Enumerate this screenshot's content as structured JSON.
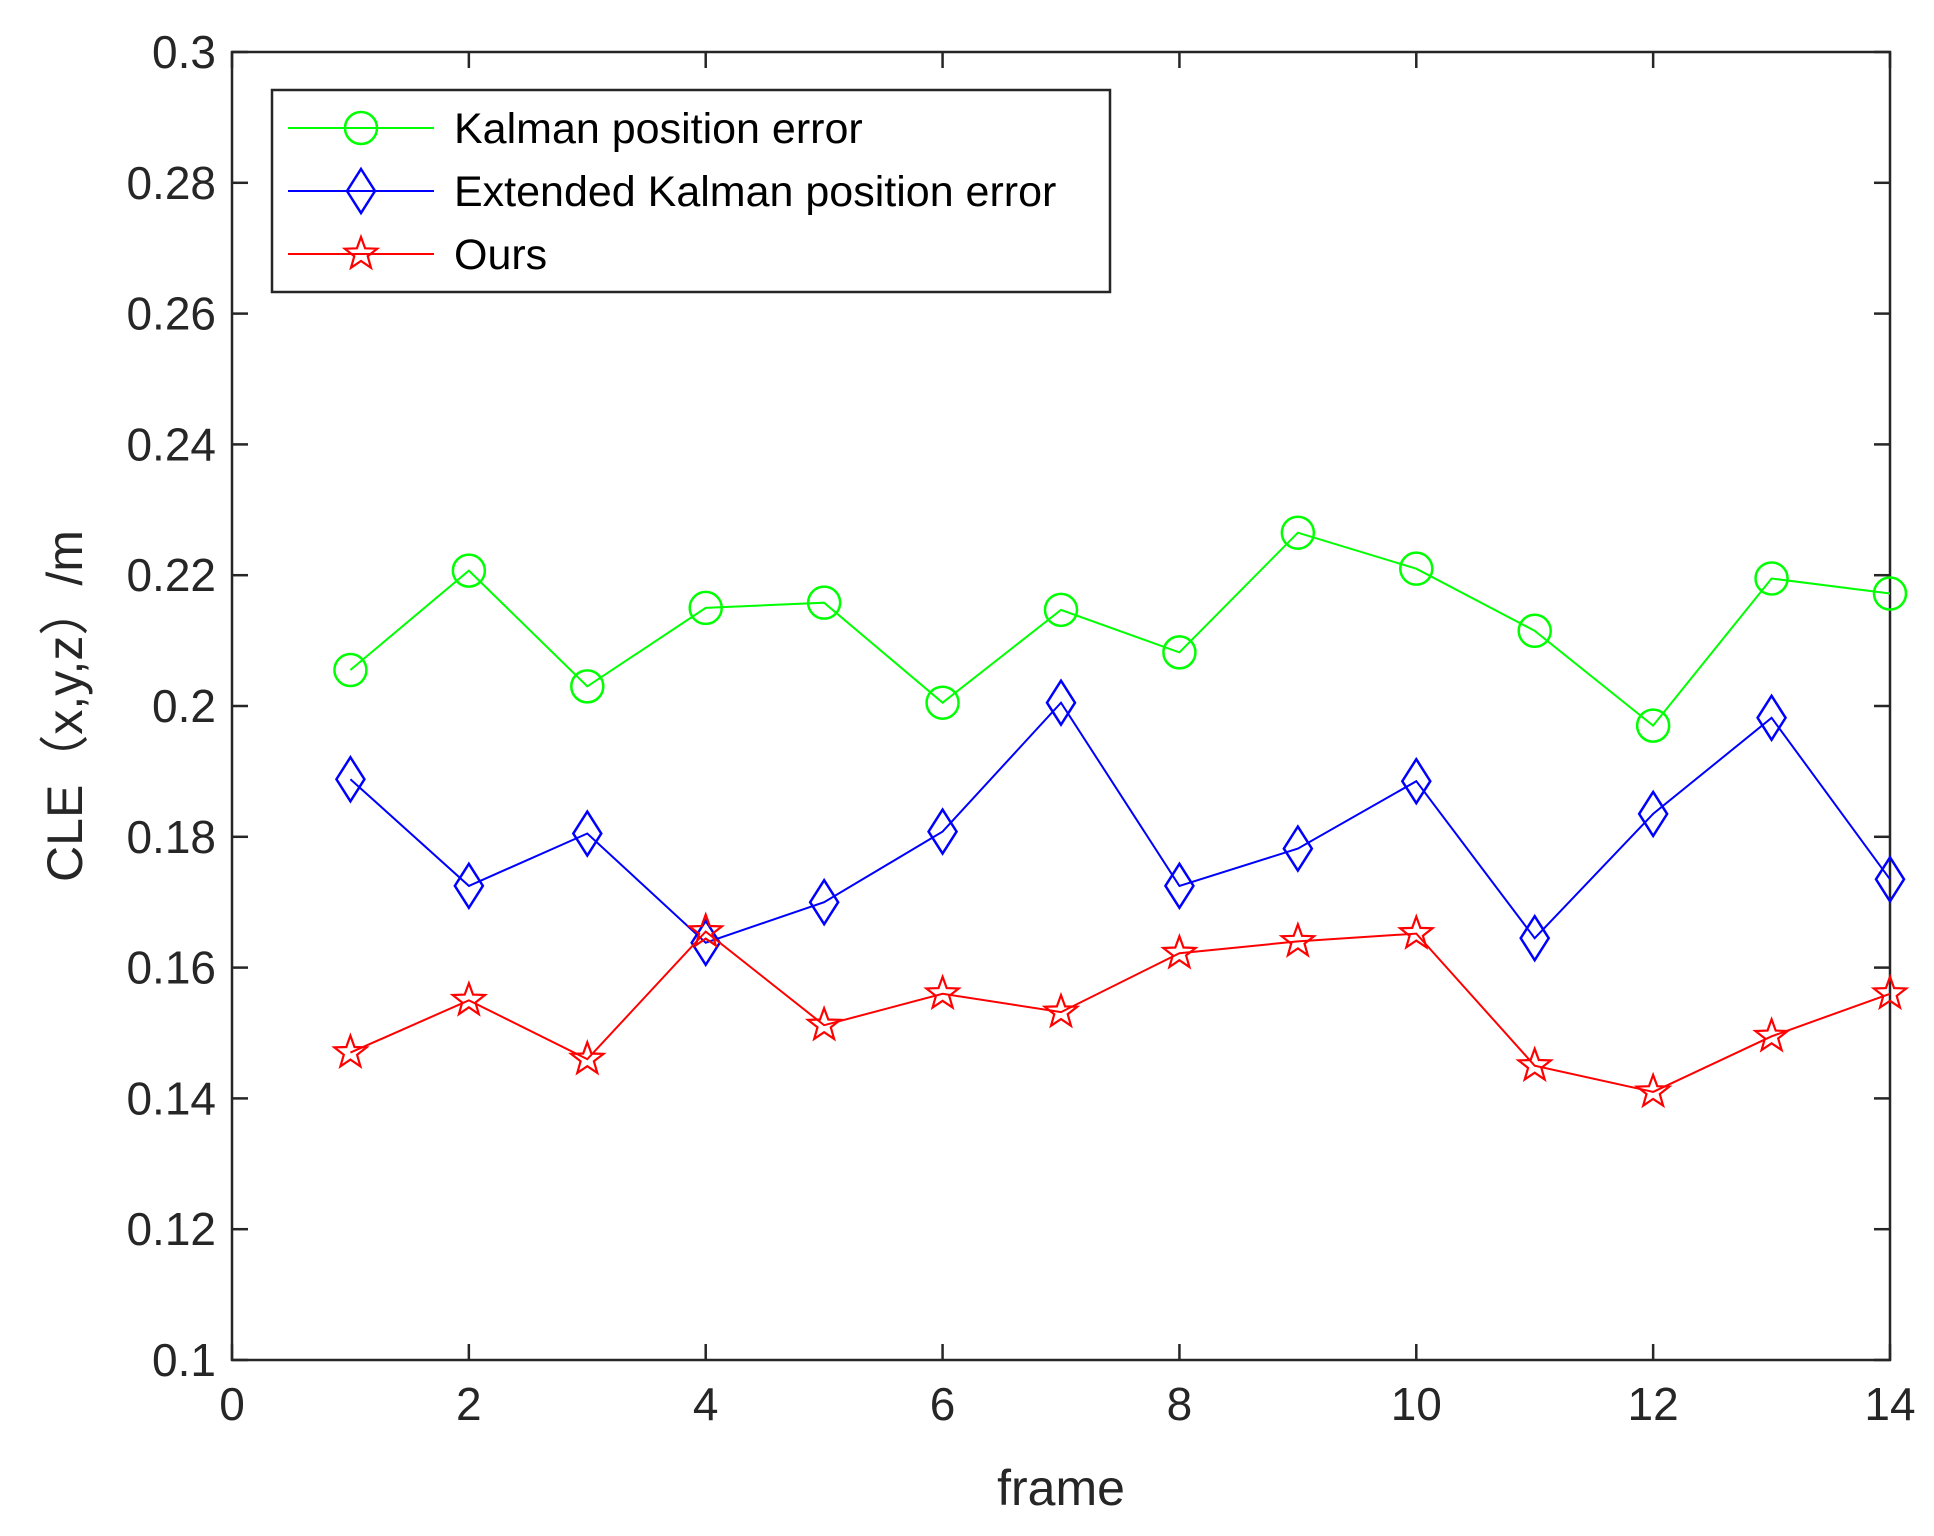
{
  "chart_data": {
    "type": "line",
    "title": "",
    "xlabel": "frame",
    "ylabel": "CLE（x,y,z）/m",
    "xlim": [
      0,
      14
    ],
    "ylim": [
      0.1,
      0.3
    ],
    "xticks": [
      0,
      2,
      4,
      6,
      8,
      10,
      12,
      14
    ],
    "xtick_labels": [
      "0",
      "2",
      "4",
      "6",
      "8",
      "10",
      "12",
      "14"
    ],
    "yticks": [
      0.1,
      0.12,
      0.14,
      0.16,
      0.18,
      0.2,
      0.22,
      0.24,
      0.26,
      0.28,
      0.3
    ],
    "ytick_labels": [
      "0.1",
      "0.12",
      "0.14",
      "0.16",
      "0.18",
      "0.2",
      "0.22",
      "0.24",
      "0.26",
      "0.28",
      "0.3"
    ],
    "grid": false,
    "legend_position": "top-left",
    "x": [
      1,
      2,
      3,
      4,
      5,
      6,
      7,
      8,
      9,
      10,
      11,
      12,
      13,
      14
    ],
    "series": [
      {
        "name": "Kalman position error",
        "color": "#00ff00",
        "marker": "circle",
        "values": [
          0.2055,
          0.2207,
          0.203,
          0.215,
          0.2158,
          0.2005,
          0.2147,
          0.2082,
          0.2265,
          0.221,
          0.2115,
          0.197,
          0.2195,
          0.2172
        ]
      },
      {
        "name": "Extended Kalman position error",
        "color": "#0000ff",
        "marker": "diamond",
        "values": [
          0.1888,
          0.1725,
          0.1805,
          0.1638,
          0.17,
          0.1808,
          0.2005,
          0.1725,
          0.1782,
          0.1885,
          0.1645,
          0.1835,
          0.1982,
          0.1735
        ]
      },
      {
        "name": "Ours",
        "color": "#ff0000",
        "marker": "star",
        "values": [
          0.147,
          0.155,
          0.146,
          0.1655,
          0.1512,
          0.156,
          0.1532,
          0.1622,
          0.164,
          0.1652,
          0.145,
          0.141,
          0.1495,
          0.156
        ]
      }
    ]
  }
}
